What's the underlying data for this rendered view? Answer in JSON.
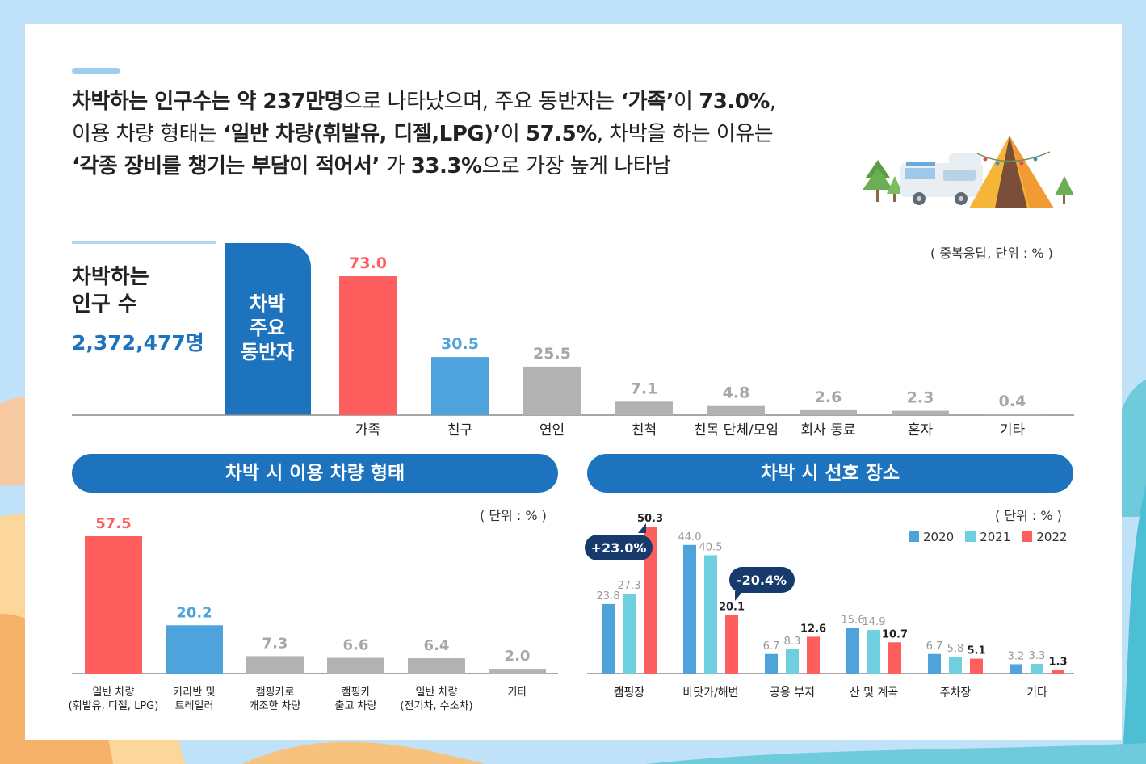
{
  "headline": {
    "l1_b1": "차박하는 인구수는 약 237만명",
    "l1_t1": "으로 나타났으며, 주요 동반자는 ",
    "l1_b2": "‘가족’",
    "l1_t2": "이 ",
    "l1_b3": "73.0%",
    "l1_t3": ",",
    "l2_t1": "이용 차량 형태는 ",
    "l2_b1": "‘일반 차량(휘발유, 디젤,LPG)’",
    "l2_t2": "이 ",
    "l2_b2": "57.5%",
    "l2_t3": ", 차박을 하는 이유는",
    "l3_b1": "‘각종 장비를 챙기는 부담이 적어서’",
    "l3_t1": " 가 ",
    "l3_b2": "33.3%",
    "l3_t2": "으로 가장 높게 나타남"
  },
  "population": {
    "label_line1": "차박하는",
    "label_line2": "인구 수",
    "value": "2,372,477명"
  },
  "colors": {
    "red": "#ff5e5e",
    "blue_dark": "#1e73be",
    "blue_mid": "#4fa3dc",
    "cyan": "#6ecfdf",
    "gray": "#b2b2b2"
  },
  "chart_data": [
    {
      "type": "bar",
      "title_lines": [
        "차박",
        "주요",
        "동반자"
      ],
      "unit_note": "( 중복응답, 단위 : % )",
      "categories": [
        "가족",
        "친구",
        "연인",
        "친척",
        "친목 단체/모임",
        "회사 동료",
        "혼자",
        "기타"
      ],
      "values": [
        73.0,
        30.5,
        25.5,
        7.1,
        4.8,
        2.6,
        2.3,
        0.4
      ],
      "value_labels": [
        "73.0",
        "30.5",
        "25.5",
        "7.1",
        "4.8",
        "2.6",
        "2.3",
        "0.4"
      ],
      "bar_colors": [
        "#ff5e5e",
        "#4fa3dc",
        "#b2b2b2",
        "#b2b2b2",
        "#b2b2b2",
        "#b2b2b2",
        "#b2b2b2",
        "#b2b2b2"
      ],
      "label_colors": [
        "#ff5e5e",
        "#4fa3dc",
        "#a7a7a7",
        "#a7a7a7",
        "#a7a7a7",
        "#a7a7a7",
        "#a7a7a7",
        "#a7a7a7"
      ],
      "ylim": [
        0,
        75
      ]
    },
    {
      "type": "bar",
      "title": "차박 시 이용 차량 형태",
      "unit_note": "( 단위 : % )",
      "categories": [
        [
          "일반 차량",
          "(휘발유, 디젤, LPG)"
        ],
        [
          "카라반 및",
          "트레일러"
        ],
        [
          "캠핑카로",
          "개조한 차량"
        ],
        [
          "캠핑카",
          "출고 차량"
        ],
        [
          "일반 차량",
          "(전기차, 수소차)"
        ],
        [
          "기타"
        ]
      ],
      "values": [
        57.5,
        20.2,
        7.3,
        6.6,
        6.4,
        2.0
      ],
      "value_labels": [
        "57.5",
        "20.2",
        "7.3",
        "6.6",
        "6.4",
        "2.0"
      ],
      "bar_colors": [
        "#ff5e5e",
        "#4fa3dc",
        "#b2b2b2",
        "#b2b2b2",
        "#b2b2b2",
        "#b2b2b2"
      ],
      "label_colors": [
        "#ff5e5e",
        "#4fa3dc",
        "#a7a7a7",
        "#a7a7a7",
        "#a7a7a7",
        "#a7a7a7"
      ],
      "ylim": [
        0,
        60
      ]
    },
    {
      "type": "bar",
      "title": "차박 시 선호 장소",
      "unit_note": "( 단위 : % )",
      "categories": [
        "캠핑장",
        "바닷가/해변",
        "공용 부지",
        "산 및 계곡",
        "주차장",
        "기타"
      ],
      "series": [
        {
          "name": "2020",
          "color": "#4fa3dc",
          "values": [
            23.8,
            44.0,
            6.7,
            15.6,
            6.7,
            3.2
          ],
          "labels": [
            "23.8",
            "44.0",
            "6.7",
            "15.6",
            "6.7",
            "3.2"
          ]
        },
        {
          "name": "2021",
          "color": "#6ecfdf",
          "values": [
            27.3,
            40.5,
            8.3,
            14.9,
            5.8,
            3.3
          ],
          "labels": [
            "27.3",
            "40.5",
            "8.3",
            "14.9",
            "5.8",
            "3.3"
          ]
        },
        {
          "name": "2022",
          "color": "#ff5e5e",
          "values": [
            50.3,
            20.1,
            12.6,
            10.7,
            5.1,
            1.3
          ],
          "labels": [
            "50.3",
            "20.1",
            "12.6",
            "10.7",
            "5.1",
            "1.3"
          ]
        }
      ],
      "callouts": [
        "+23.0%",
        "-20.4%"
      ],
      "ylim": [
        0,
        52
      ]
    }
  ]
}
